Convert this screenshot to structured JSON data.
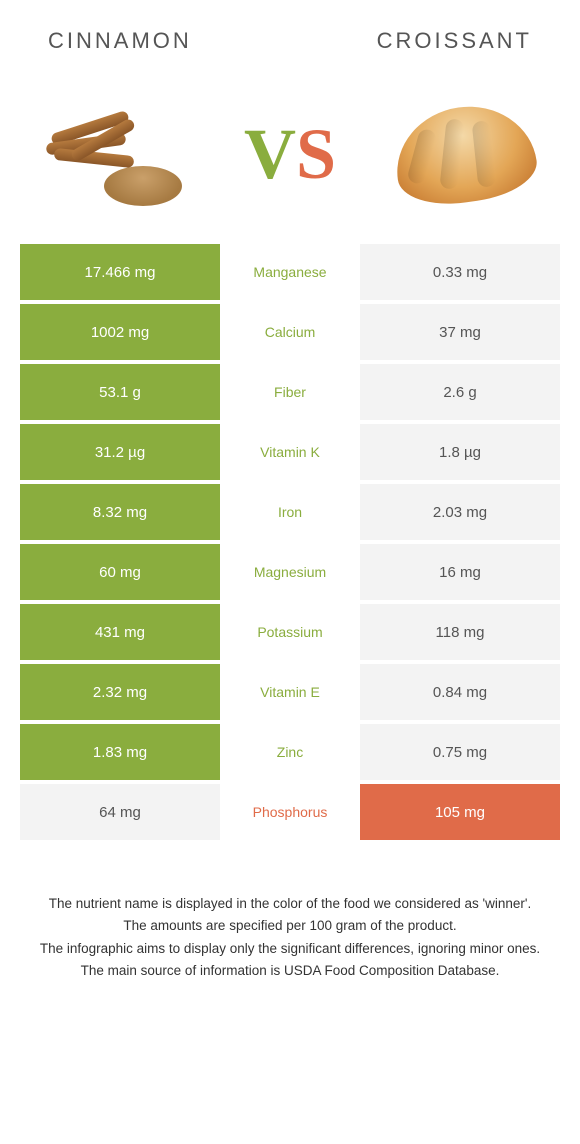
{
  "colors": {
    "green": "#8aad3e",
    "orange": "#e06b49",
    "pale": "#f3f3f3"
  },
  "header": {
    "left": "Cinnamon",
    "right": "Croissant"
  },
  "vs": {
    "v": "V",
    "s": "S"
  },
  "rows": [
    {
      "nutrient": "Manganese",
      "left": "17.466 mg",
      "right": "0.33 mg",
      "winner": "left"
    },
    {
      "nutrient": "Calcium",
      "left": "1002 mg",
      "right": "37 mg",
      "winner": "left"
    },
    {
      "nutrient": "Fiber",
      "left": "53.1 g",
      "right": "2.6 g",
      "winner": "left"
    },
    {
      "nutrient": "Vitamin K",
      "left": "31.2 µg",
      "right": "1.8 µg",
      "winner": "left"
    },
    {
      "nutrient": "Iron",
      "left": "8.32 mg",
      "right": "2.03 mg",
      "winner": "left"
    },
    {
      "nutrient": "Magnesium",
      "left": "60 mg",
      "right": "16 mg",
      "winner": "left"
    },
    {
      "nutrient": "Potassium",
      "left": "431 mg",
      "right": "118 mg",
      "winner": "left"
    },
    {
      "nutrient": "Vitamin E",
      "left": "2.32 mg",
      "right": "0.84 mg",
      "winner": "left"
    },
    {
      "nutrient": "Zinc",
      "left": "1.83 mg",
      "right": "0.75 mg",
      "winner": "left"
    },
    {
      "nutrient": "Phosphorus",
      "left": "64 mg",
      "right": "105 mg",
      "winner": "right"
    }
  ],
  "footnotes": [
    "The nutrient name is displayed in the color of the food we considered as 'winner'.",
    "The amounts are specified per 100 gram of the product.",
    "The infographic aims to display only the significant differences, ignoring minor ones.",
    "The main source of information is USDA Food Composition Database."
  ]
}
